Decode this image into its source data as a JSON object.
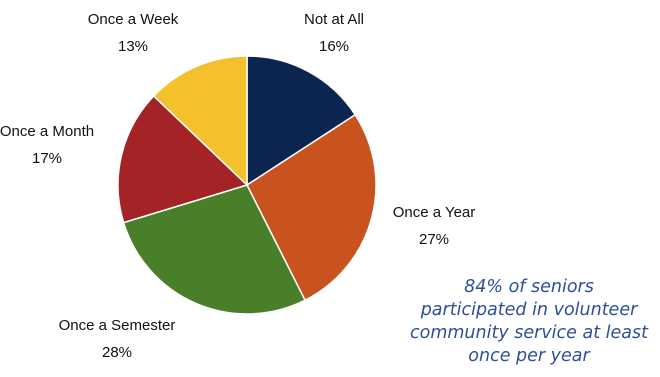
{
  "chart_data": {
    "type": "pie",
    "start_angle_deg": 0,
    "direction": "clockwise",
    "slices": [
      {
        "label": "Not at All",
        "value": 16,
        "display": "16%",
        "color": "#0b2550"
      },
      {
        "label": "Once a Year",
        "value": 27,
        "display": "27%",
        "color": "#c8531e"
      },
      {
        "label": "Once a Semester",
        "value": 28,
        "display": "28%",
        "color": "#4a7f2a"
      },
      {
        "label": "Once a Month",
        "value": 17,
        "display": "17%",
        "color": "#a32327"
      },
      {
        "label": "Once a Week",
        "value": 13,
        "display": "13%",
        "color": "#f4c02c"
      }
    ],
    "slice_border_color": "#ffffff",
    "legend": "none"
  },
  "annotation": {
    "lines": [
      "84% of seniors",
      "participated in volunteer",
      "community service at least",
      "once per year"
    ],
    "color": "#2f4f9a"
  }
}
